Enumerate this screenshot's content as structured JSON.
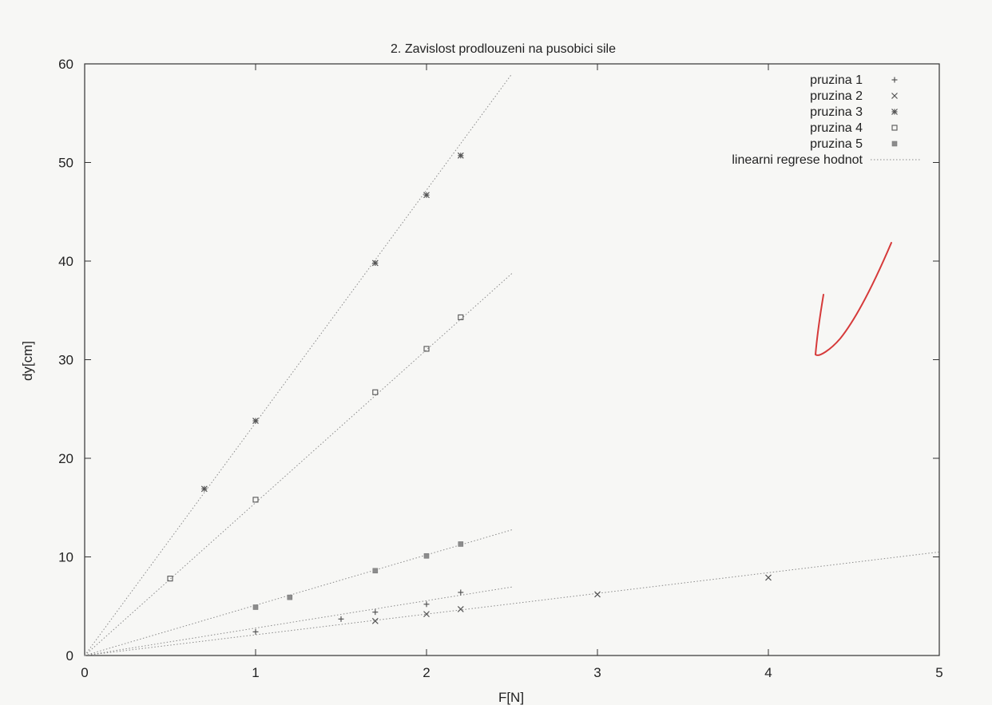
{
  "chart_data": {
    "type": "scatter",
    "title": "2. Zavislost prodlouzeni na pusobici sile",
    "xlabel": "F[N]",
    "ylabel": "dy[cm]",
    "xlim": [
      0,
      5
    ],
    "ylim": [
      0,
      60
    ],
    "xticks": [
      "0",
      "1",
      "2",
      "3",
      "4",
      "5"
    ],
    "yticks": [
      "0",
      "10",
      "20",
      "30",
      "40",
      "50",
      "60"
    ],
    "grid": false,
    "legend_position": "top-right",
    "series": [
      {
        "name": "pruzina 1",
        "marker": "plus",
        "x": [
          1.0,
          1.5,
          1.7,
          2.0,
          2.2
        ],
        "y": [
          2.4,
          3.7,
          4.4,
          5.2,
          6.4
        ],
        "fit": {
          "slope": 2.78,
          "x_end": 2.5
        }
      },
      {
        "name": "pruzina 2",
        "marker": "cross",
        "x": [
          1.7,
          2.0,
          2.2,
          3.0,
          4.0
        ],
        "y": [
          3.5,
          4.2,
          4.7,
          6.2,
          7.9
        ],
        "fit": {
          "slope": 2.1,
          "x_end": 5.0
        }
      },
      {
        "name": "pruzina 3",
        "marker": "star",
        "x": [
          0.7,
          1.0,
          1.7,
          2.0,
          2.2
        ],
        "y": [
          16.9,
          23.8,
          39.8,
          46.7,
          50.7
        ],
        "fit": {
          "slope": 23.6,
          "x_end": 2.5
        }
      },
      {
        "name": "pruzina 4",
        "marker": "open-square",
        "x": [
          0.5,
          1.0,
          1.7,
          2.0,
          2.2
        ],
        "y": [
          7.8,
          15.8,
          26.7,
          31.1,
          34.3
        ],
        "fit": {
          "slope": 15.5,
          "x_end": 2.5
        }
      },
      {
        "name": "pruzina 5",
        "marker": "filled-square",
        "x": [
          1.0,
          1.2,
          1.7,
          2.0,
          2.2
        ],
        "y": [
          4.9,
          5.9,
          8.6,
          10.1,
          11.3
        ],
        "fit": {
          "slope": 5.1,
          "x_end": 2.5
        }
      }
    ],
    "regression_legend": "linearni regrese hodnot",
    "colors": {
      "marker": "#555555",
      "fit_line": "#8a8a8a",
      "axis": "#333333",
      "annotation": "#d63a3a"
    }
  }
}
